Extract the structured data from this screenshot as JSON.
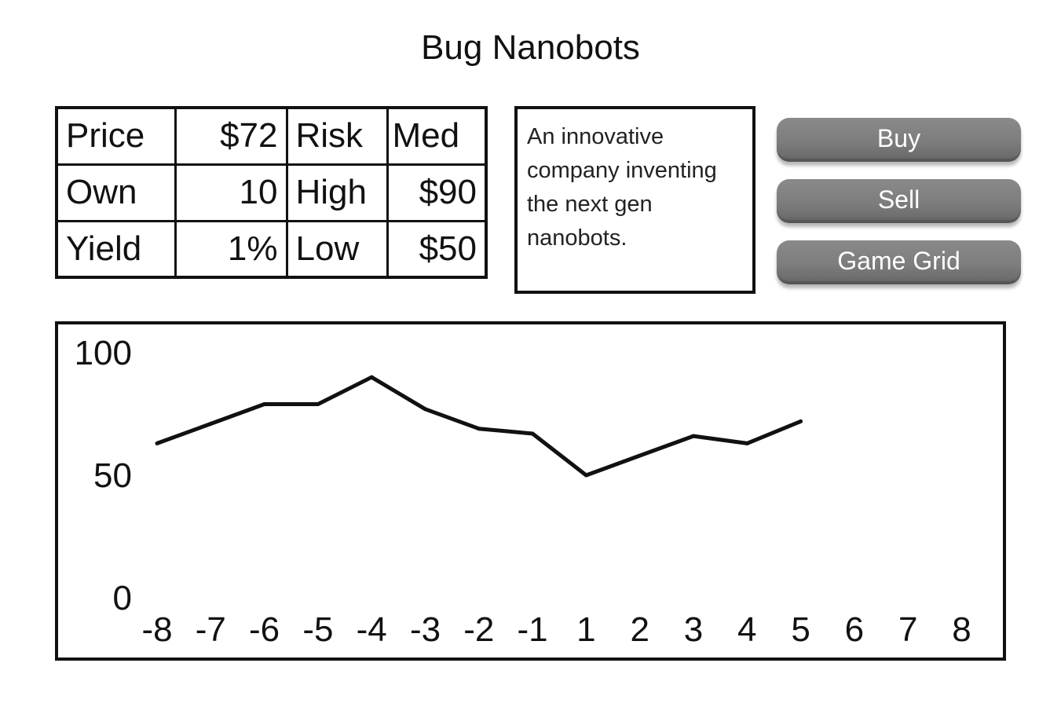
{
  "title": "Bug Nanobots",
  "stats": {
    "price_label": "Price",
    "price_value": "$72",
    "risk_label": "Risk",
    "risk_value": "Med",
    "own_label": "Own",
    "own_value": "10",
    "high_label": "High",
    "high_value": "$90",
    "yield_label": "Yield",
    "yield_value": "1%",
    "low_label": "Low",
    "low_value": "$50"
  },
  "description": "An innovative company inventing the next gen nanobots.",
  "buttons": {
    "buy": "Buy",
    "sell": "Sell",
    "game_grid": "Game Grid"
  },
  "colors": {
    "button_gray": "#7d7d7d",
    "line": "#111111"
  },
  "chart_data": {
    "type": "line",
    "title": "",
    "xlabel": "",
    "ylabel": "",
    "x_ticks": [
      "-8",
      "-7",
      "-6",
      "-5",
      "-4",
      "-3",
      "-2",
      "-1",
      "1",
      "2",
      "3",
      "4",
      "5",
      "6",
      "7",
      "8"
    ],
    "y_ticks": [
      "0",
      "50",
      "100"
    ],
    "ylim": [
      0,
      100
    ],
    "grid": false,
    "series": [
      {
        "x": [
          "-8",
          "-7",
          "-6",
          "-5",
          "-4",
          "-3",
          "-2",
          "-1",
          "1",
          "2",
          "3",
          "4",
          "5"
        ],
        "values": [
          63,
          71,
          79,
          79,
          90,
          77,
          69,
          67,
          50,
          58,
          66,
          63,
          72
        ]
      }
    ]
  }
}
